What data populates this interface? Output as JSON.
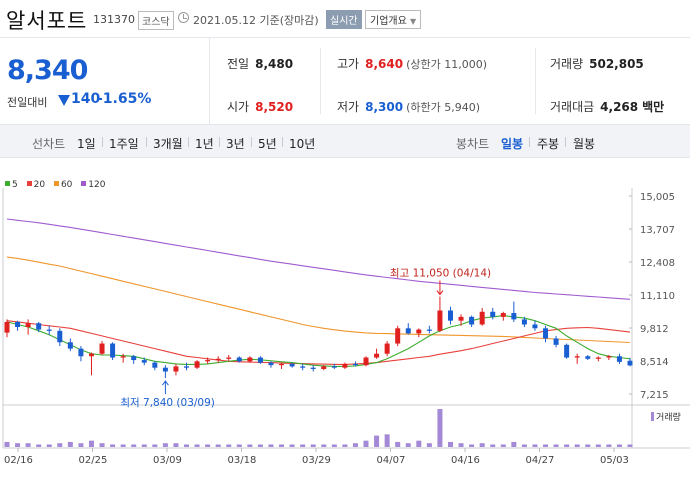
{
  "header": {
    "name": "알서포트",
    "code": "131370",
    "market": "코스닥",
    "date_text": "2021.05.12 기준(장마감)",
    "realtime_label": "실시간",
    "overview_label": "기업개요"
  },
  "price": {
    "current": "8,340",
    "change_label": "전일대비",
    "change": "140",
    "change_pct": "-1.65%"
  },
  "stats": {
    "prev_label": "전일",
    "prev": "8,480",
    "high_label": "고가",
    "high": "8,640",
    "high_limit": "(상한가 11,000)",
    "volume_label": "거래량",
    "volume": "502,805",
    "open_label": "시가",
    "open": "8,520",
    "low_label": "저가",
    "low": "8,300",
    "low_limit": "(하한가 5,940)",
    "amount_label": "거래대금",
    "amount": "4,268",
    "amount_unit": "백만"
  },
  "tabs": {
    "line_chart": "선차트",
    "periods": [
      "1일",
      "1주일",
      "3개월",
      "1년",
      "3년",
      "5년",
      "10년"
    ],
    "candle_chart": "봉차트",
    "candle_periods": [
      "일봉",
      "주봉",
      "월봉"
    ],
    "active": "일봉"
  },
  "colors": {
    "up": "#e01f1f",
    "down": "#1a5fd1",
    "ma5": "#3cad2e",
    "ma20": "#e8413c",
    "ma60": "#f0962b",
    "ma120": "#a05ccf",
    "volume": "#a48ad6"
  },
  "chart_data": {
    "type": "candlestick",
    "legend": [
      "5",
      "20",
      "60",
      "120"
    ],
    "y_ticks": [
      "15,005",
      "13,707",
      "12,408",
      "11,110",
      "9,812",
      "8,514",
      "7,215"
    ],
    "x_ticks": [
      "02/16",
      "02/25",
      "03/09",
      "03/18",
      "03/29",
      "04/07",
      "04/16",
      "04/27",
      "05/03"
    ],
    "ylim": [
      7215,
      15005
    ],
    "high_annotation": "최고 11,050 (04/14)",
    "low_annotation": "최저 7,840 (03/09)",
    "volume_label": "거래량",
    "candles": [
      [
        9630,
        10150,
        9450,
        10050
      ],
      [
        10050,
        10100,
        9700,
        9850
      ],
      [
        9850,
        10150,
        9550,
        10000
      ],
      [
        10000,
        10050,
        9650,
        9750
      ],
      [
        9750,
        9900,
        9550,
        9700
      ],
      [
        9700,
        9800,
        9100,
        9250
      ],
      [
        9250,
        9400,
        8900,
        9000
      ],
      [
        9000,
        9100,
        8500,
        8700
      ],
      [
        8700,
        8850,
        7950,
        8800
      ],
      [
        8800,
        9300,
        8750,
        9200
      ],
      [
        9200,
        9250,
        8550,
        8650
      ],
      [
        8650,
        8800,
        8450,
        8700
      ],
      [
        8700,
        8750,
        8400,
        8550
      ],
      [
        8550,
        8650,
        8350,
        8450
      ],
      [
        8450,
        8500,
        8150,
        8250
      ],
      [
        8250,
        8350,
        7840,
        8100
      ],
      [
        8100,
        8400,
        7950,
        8300
      ],
      [
        8300,
        8450,
        8150,
        8250
      ],
      [
        8250,
        8550,
        8200,
        8500
      ],
      [
        8500,
        8650,
        8400,
        8550
      ],
      [
        8550,
        8700,
        8450,
        8600
      ],
      [
        8600,
        8750,
        8500,
        8650
      ],
      [
        8650,
        8700,
        8450,
        8500
      ],
      [
        8500,
        8700,
        8450,
        8650
      ],
      [
        8650,
        8700,
        8400,
        8450
      ],
      [
        8450,
        8500,
        8250,
        8350
      ],
      [
        8350,
        8450,
        8200,
        8400
      ],
      [
        8400,
        8450,
        8250,
        8300
      ],
      [
        8300,
        8400,
        8150,
        8250
      ],
      [
        8250,
        8350,
        8100,
        8200
      ],
      [
        8200,
        8350,
        8150,
        8300
      ],
      [
        8300,
        8400,
        8200,
        8250
      ],
      [
        8250,
        8450,
        8200,
        8400
      ],
      [
        8400,
        8500,
        8300,
        8350
      ],
      [
        8350,
        8700,
        8300,
        8650
      ],
      [
        8650,
        9000,
        8600,
        8800
      ],
      [
        8800,
        9300,
        8700,
        9200
      ],
      [
        9200,
        9900,
        9100,
        9800
      ],
      [
        9800,
        10000,
        9550,
        9600
      ],
      [
        9600,
        9800,
        9450,
        9750
      ],
      [
        9750,
        9900,
        9600,
        9700
      ],
      [
        9700,
        11050,
        9650,
        10500
      ],
      [
        10500,
        10650,
        9950,
        10100
      ],
      [
        10100,
        10350,
        9900,
        10250
      ],
      [
        10250,
        10300,
        9850,
        9950
      ],
      [
        9950,
        10600,
        9900,
        10450
      ],
      [
        10450,
        10600,
        10150,
        10250
      ],
      [
        10250,
        10450,
        10100,
        10400
      ],
      [
        10400,
        10850,
        10050,
        10150
      ],
      [
        10150,
        10250,
        9850,
        9950
      ],
      [
        9950,
        10100,
        9700,
        9800
      ],
      [
        9800,
        9900,
        9250,
        9400
      ],
      [
        9400,
        9500,
        9050,
        9150
      ],
      [
        9150,
        9200,
        8600,
        8650
      ],
      [
        8650,
        8800,
        8400,
        8700
      ],
      [
        8700,
        8750,
        8550,
        8600
      ],
      [
        8600,
        8700,
        8500,
        8650
      ],
      [
        8650,
        8750,
        8550,
        8700
      ],
      [
        8700,
        8800,
        8400,
        8480
      ],
      [
        8520,
        8640,
        8300,
        8340
      ]
    ],
    "ma": {
      "5": [
        10050,
        9950,
        9850,
        9700,
        9550,
        9350,
        9150,
        8950,
        8800,
        8750,
        8750,
        8720,
        8700,
        8600,
        8500,
        8450,
        8400,
        8380,
        8380,
        8400,
        8450,
        8500,
        8550,
        8580,
        8560,
        8520,
        8480,
        8450,
        8400,
        8350,
        8320,
        8300,
        8300,
        8320,
        8380,
        8450,
        8600,
        8800,
        9000,
        9250,
        9500,
        9700,
        9850,
        9950,
        10100,
        10200,
        10250,
        10300,
        10250,
        10200,
        10100,
        9950,
        9800,
        9500,
        9250,
        9000,
        8800,
        8700,
        8650,
        8600
      ],
      "20": [
        10100,
        10050,
        10000,
        9950,
        9900,
        9850,
        9800,
        9700,
        9600,
        9500,
        9400,
        9300,
        9200,
        9100,
        9000,
        8900,
        8800,
        8700,
        8650,
        8600,
        8550,
        8500,
        8480,
        8470,
        8460,
        8450,
        8430,
        8420,
        8410,
        8400,
        8390,
        8380,
        8380,
        8400,
        8420,
        8450,
        8500,
        8550,
        8600,
        8650,
        8700,
        8780,
        8850,
        8920,
        9000,
        9100,
        9200,
        9300,
        9400,
        9500,
        9600,
        9700,
        9750,
        9800,
        9820,
        9830,
        9800,
        9750,
        9700,
        9650
      ],
      "60": [
        12600,
        12550,
        12480,
        12400,
        12320,
        12250,
        12150,
        12050,
        11950,
        11850,
        11750,
        11650,
        11550,
        11450,
        11350,
        11250,
        11150,
        11050,
        10950,
        10850,
        10750,
        10650,
        10550,
        10450,
        10350,
        10250,
        10150,
        10050,
        9950,
        9870,
        9800,
        9740,
        9690,
        9650,
        9620,
        9600,
        9590,
        9580,
        9570,
        9560,
        9550,
        9540,
        9530,
        9520,
        9510,
        9500,
        9490,
        9480,
        9460,
        9440,
        9420,
        9400,
        9380,
        9360,
        9340,
        9320,
        9300,
        9280,
        9260,
        9240
      ],
      "120": [
        14100,
        14050,
        14000,
        13950,
        13890,
        13830,
        13770,
        13700,
        13630,
        13560,
        13490,
        13420,
        13350,
        13280,
        13210,
        13140,
        13070,
        13000,
        12930,
        12860,
        12790,
        12720,
        12650,
        12580,
        12510,
        12440,
        12380,
        12320,
        12260,
        12200,
        12140,
        12080,
        12020,
        11960,
        11900,
        11850,
        11800,
        11750,
        11700,
        11650,
        11610,
        11570,
        11530,
        11490,
        11450,
        11410,
        11370,
        11330,
        11290,
        11250,
        11210,
        11180,
        11150,
        11120,
        11090,
        11060,
        11030,
        11000,
        10970,
        10940
      ]
    },
    "volume": [
      4,
      3,
      3,
      2,
      2,
      3,
      4,
      3,
      5,
      3,
      2,
      2,
      2,
      2,
      2,
      3,
      3,
      2,
      2,
      2,
      2,
      2,
      2,
      2,
      2,
      2,
      2,
      2,
      2,
      2,
      2,
      2,
      2,
      3,
      5,
      9,
      10,
      4,
      3,
      5,
      3,
      30,
      4,
      3,
      2,
      3,
      2,
      2,
      4,
      2,
      2,
      2,
      2,
      2,
      2,
      2,
      2,
      2,
      2,
      2
    ]
  }
}
